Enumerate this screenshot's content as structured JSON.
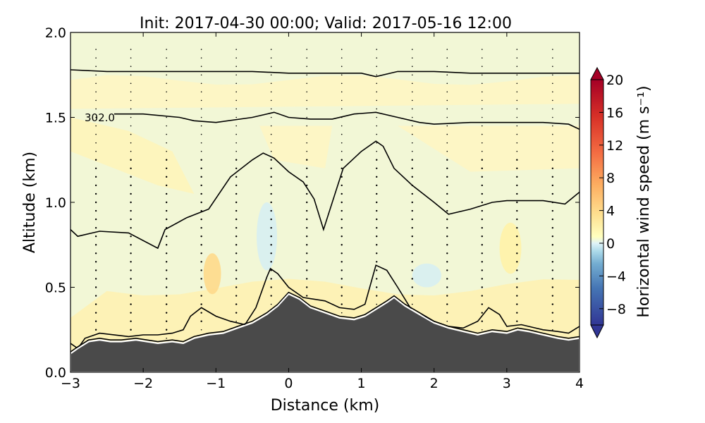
{
  "chart_data": {
    "type": "contour",
    "title": "Init: 2017-04-30 00:00; Valid: 2017-05-16 12:00",
    "xlabel": "Distance (km)",
    "ylabel": "Altitude (km)",
    "xlim": [
      -3,
      4
    ],
    "ylim": [
      0,
      2
    ],
    "x_ticks": [
      -3,
      -2,
      -1,
      0,
      1,
      2,
      3,
      4
    ],
    "y_ticks": [
      0.0,
      0.5,
      1.0,
      1.5,
      2.0
    ],
    "x_tick_labels": [
      "−3",
      "−2",
      "−1",
      "0",
      "1",
      "2",
      "3",
      "4"
    ],
    "y_tick_labels": [
      "0.0",
      "0.5",
      "1.0",
      "1.5",
      "2.0"
    ],
    "colorbar": {
      "label": "Horizontal wind speed (m s⁻¹)",
      "vmin": -10,
      "vmax": 20,
      "ticks": [
        -8,
        -4,
        0,
        4,
        8,
        12,
        16,
        20
      ],
      "tick_labels": [
        "−8",
        "−4",
        "0",
        "4",
        "8",
        "12",
        "16",
        "20"
      ],
      "extend": "both",
      "colormap": "RdYlBu_r"
    },
    "contour_label": "302.0",
    "terrain": {
      "x": [
        -3.0,
        -2.9,
        -2.75,
        -2.6,
        -2.45,
        -2.3,
        -2.1,
        -1.95,
        -1.8,
        -1.6,
        -1.45,
        -1.3,
        -1.1,
        -0.9,
        -0.7,
        -0.5,
        -0.3,
        -0.15,
        0.0,
        0.15,
        0.3,
        0.5,
        0.7,
        0.9,
        1.05,
        1.2,
        1.35,
        1.45,
        1.6,
        1.8,
        2.0,
        2.2,
        2.4,
        2.6,
        2.8,
        3.0,
        3.15,
        3.3,
        3.5,
        3.7,
        3.85,
        4.0
      ],
      "y": [
        0.11,
        0.14,
        0.18,
        0.19,
        0.18,
        0.18,
        0.19,
        0.18,
        0.17,
        0.18,
        0.17,
        0.2,
        0.22,
        0.23,
        0.26,
        0.29,
        0.34,
        0.39,
        0.46,
        0.43,
        0.38,
        0.35,
        0.32,
        0.31,
        0.33,
        0.37,
        0.41,
        0.44,
        0.39,
        0.34,
        0.29,
        0.26,
        0.24,
        0.22,
        0.24,
        0.23,
        0.25,
        0.24,
        0.22,
        0.2,
        0.19,
        0.2
      ]
    },
    "isentropes": [
      {
        "x": [
          -3.0,
          -2.5,
          -2.0,
          -1.5,
          -1.0,
          -0.5,
          0.0,
          0.5,
          1.0,
          1.2,
          1.5,
          2.0,
          2.5,
          3.0,
          3.5,
          4.0
        ],
        "y": [
          1.78,
          1.77,
          1.77,
          1.77,
          1.77,
          1.77,
          1.76,
          1.76,
          1.76,
          1.74,
          1.77,
          1.77,
          1.76,
          1.76,
          1.76,
          1.76
        ]
      },
      {
        "x": [
          -2.4,
          -2.0,
          -1.5,
          -1.3,
          -1.0,
          -0.5,
          -0.2,
          0.0,
          0.3,
          0.6,
          0.9,
          1.2,
          1.5,
          1.8,
          2.0,
          2.5,
          3.0,
          3.5,
          3.85,
          4.0
        ],
        "y": [
          1.52,
          1.52,
          1.5,
          1.48,
          1.47,
          1.5,
          1.53,
          1.5,
          1.49,
          1.49,
          1.52,
          1.53,
          1.5,
          1.47,
          1.46,
          1.47,
          1.47,
          1.47,
          1.46,
          1.43
        ]
      },
      {
        "x": [
          -3.0,
          -2.9,
          -2.6,
          -2.2,
          -1.8,
          -1.7,
          -1.4,
          -1.1,
          -0.8,
          -0.5,
          -0.35,
          -0.2,
          0.0,
          0.2,
          0.35,
          0.48,
          0.6,
          0.75,
          1.0,
          1.2,
          1.3,
          1.45,
          1.7,
          2.0,
          2.2,
          2.5,
          2.8,
          3.0,
          3.5,
          3.8,
          4.0
        ],
        "y": [
          0.84,
          0.8,
          0.83,
          0.82,
          0.73,
          0.84,
          0.91,
          0.96,
          1.15,
          1.25,
          1.29,
          1.26,
          1.18,
          1.12,
          1.02,
          0.84,
          1.0,
          1.2,
          1.3,
          1.36,
          1.33,
          1.2,
          1.1,
          1.0,
          0.93,
          0.96,
          1.0,
          1.01,
          1.01,
          0.99,
          1.06
        ]
      },
      {
        "x": [
          -3.0,
          -2.9,
          -2.8,
          -2.6,
          -2.2,
          -2.0,
          -1.8,
          -1.6,
          -1.45,
          -1.35,
          -1.2,
          -1.0,
          -0.8,
          -0.6,
          -0.45,
          -0.3,
          -0.25,
          -0.15,
          0.0,
          0.2,
          0.5,
          0.7,
          0.9,
          1.05,
          1.2,
          1.35,
          1.5,
          1.7,
          2.0,
          2.2,
          2.4,
          2.6,
          2.75,
          2.9,
          3.0,
          3.2,
          3.5,
          3.7,
          3.85,
          4.0
        ],
        "y": [
          0.17,
          0.14,
          0.2,
          0.23,
          0.21,
          0.22,
          0.22,
          0.23,
          0.25,
          0.33,
          0.38,
          0.33,
          0.3,
          0.28,
          0.38,
          0.56,
          0.61,
          0.58,
          0.5,
          0.44,
          0.42,
          0.38,
          0.37,
          0.4,
          0.63,
          0.6,
          0.5,
          0.36,
          0.3,
          0.27,
          0.26,
          0.3,
          0.38,
          0.34,
          0.27,
          0.28,
          0.25,
          0.24,
          0.23,
          0.27
        ]
      },
      {
        "x": [
          -3.0,
          -2.9,
          -2.75,
          -2.6,
          -2.45,
          -2.3,
          -2.1,
          -1.95,
          -1.8,
          -1.6,
          -1.45,
          -1.3,
          -1.1,
          -0.9,
          -0.7,
          -0.5,
          -0.3,
          -0.15,
          0.0,
          0.15,
          0.3,
          0.5,
          0.7,
          0.9,
          1.05,
          1.2,
          1.35,
          1.45,
          1.6,
          1.8,
          2.0,
          2.2,
          2.4,
          2.6,
          2.8,
          3.0,
          3.15,
          3.3,
          3.5,
          3.7,
          3.85,
          4.0
        ],
        "y": [
          0.12,
          0.15,
          0.19,
          0.2,
          0.19,
          0.19,
          0.2,
          0.19,
          0.18,
          0.19,
          0.18,
          0.21,
          0.23,
          0.24,
          0.27,
          0.3,
          0.35,
          0.4,
          0.47,
          0.44,
          0.39,
          0.36,
          0.33,
          0.32,
          0.34,
          0.38,
          0.42,
          0.45,
          0.4,
          0.35,
          0.3,
          0.27,
          0.25,
          0.23,
          0.25,
          0.24,
          0.26,
          0.25,
          0.23,
          0.21,
          0.2,
          0.21
        ]
      }
    ],
    "wind_anomalies": [
      {
        "x": -1.05,
        "y": 0.58,
        "rx": 0.12,
        "ry": 0.12,
        "value": 4
      },
      {
        "x": -0.3,
        "y": 0.8,
        "rx": 0.14,
        "ry": 0.2,
        "value": -2
      },
      {
        "x": 1.9,
        "y": 0.57,
        "rx": 0.2,
        "ry": 0.07,
        "value": -2
      },
      {
        "x": 3.05,
        "y": 0.73,
        "rx": 0.15,
        "ry": 0.15,
        "value": 2
      }
    ],
    "wind_columns_x": [
      -2.65,
      -2.17,
      -1.68,
      -1.2,
      -0.72,
      -0.24,
      0.25,
      0.73,
      1.21,
      1.7,
      2.18,
      2.66,
      3.14,
      3.63
    ]
  }
}
